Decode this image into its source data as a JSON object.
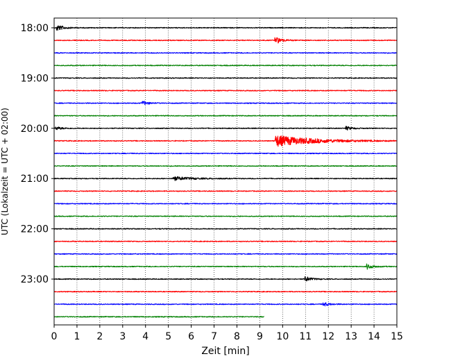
{
  "chart_data": {
    "type": "line",
    "xlabel": "Zeit  [min]",
    "ylabel": "UTC (Lokalzeit = UTC + 02:00)",
    "xlim": [
      0,
      15
    ],
    "x_ticks": [
      "0",
      "1",
      "2",
      "3",
      "4",
      "5",
      "6",
      "7",
      "8",
      "9",
      "10",
      "11",
      "12",
      "13",
      "14",
      "15"
    ],
    "y_ticks": [
      "18:00",
      "19:00",
      "20:00",
      "21:00",
      "22:00",
      "23:00"
    ],
    "grid": "vertical dotted at each minute",
    "trace_count": 24,
    "trace_interval_min": 15,
    "start_time": "18:00",
    "last_trace_end_min": 9.2,
    "colors": [
      "#000000",
      "#ff0000",
      "#0000ff",
      "#008000"
    ],
    "events": [
      {
        "trace": 0,
        "at_min": 0.15,
        "amp": 2.2
      },
      {
        "trace": 1,
        "at_min": 9.7,
        "amp": 2.6
      },
      {
        "trace": 6,
        "at_min": 3.9,
        "amp": 1.3
      },
      {
        "trace": 8,
        "at_min": 0.1,
        "amp": 1.0
      },
      {
        "trace": 8,
        "at_min": 12.8,
        "amp": 1.2
      },
      {
        "trace": 9,
        "at_min": 9.7,
        "amp": 4.0,
        "coda": 1.6
      },
      {
        "trace": 12,
        "at_min": 5.2,
        "amp": 1.4,
        "coda": 0.8
      },
      {
        "trace": 19,
        "at_min": 13.7,
        "amp": 1.8
      },
      {
        "trace": 20,
        "at_min": 11.0,
        "amp": 1.8
      },
      {
        "trace": 22,
        "at_min": 11.8,
        "amp": 1.4
      }
    ]
  }
}
